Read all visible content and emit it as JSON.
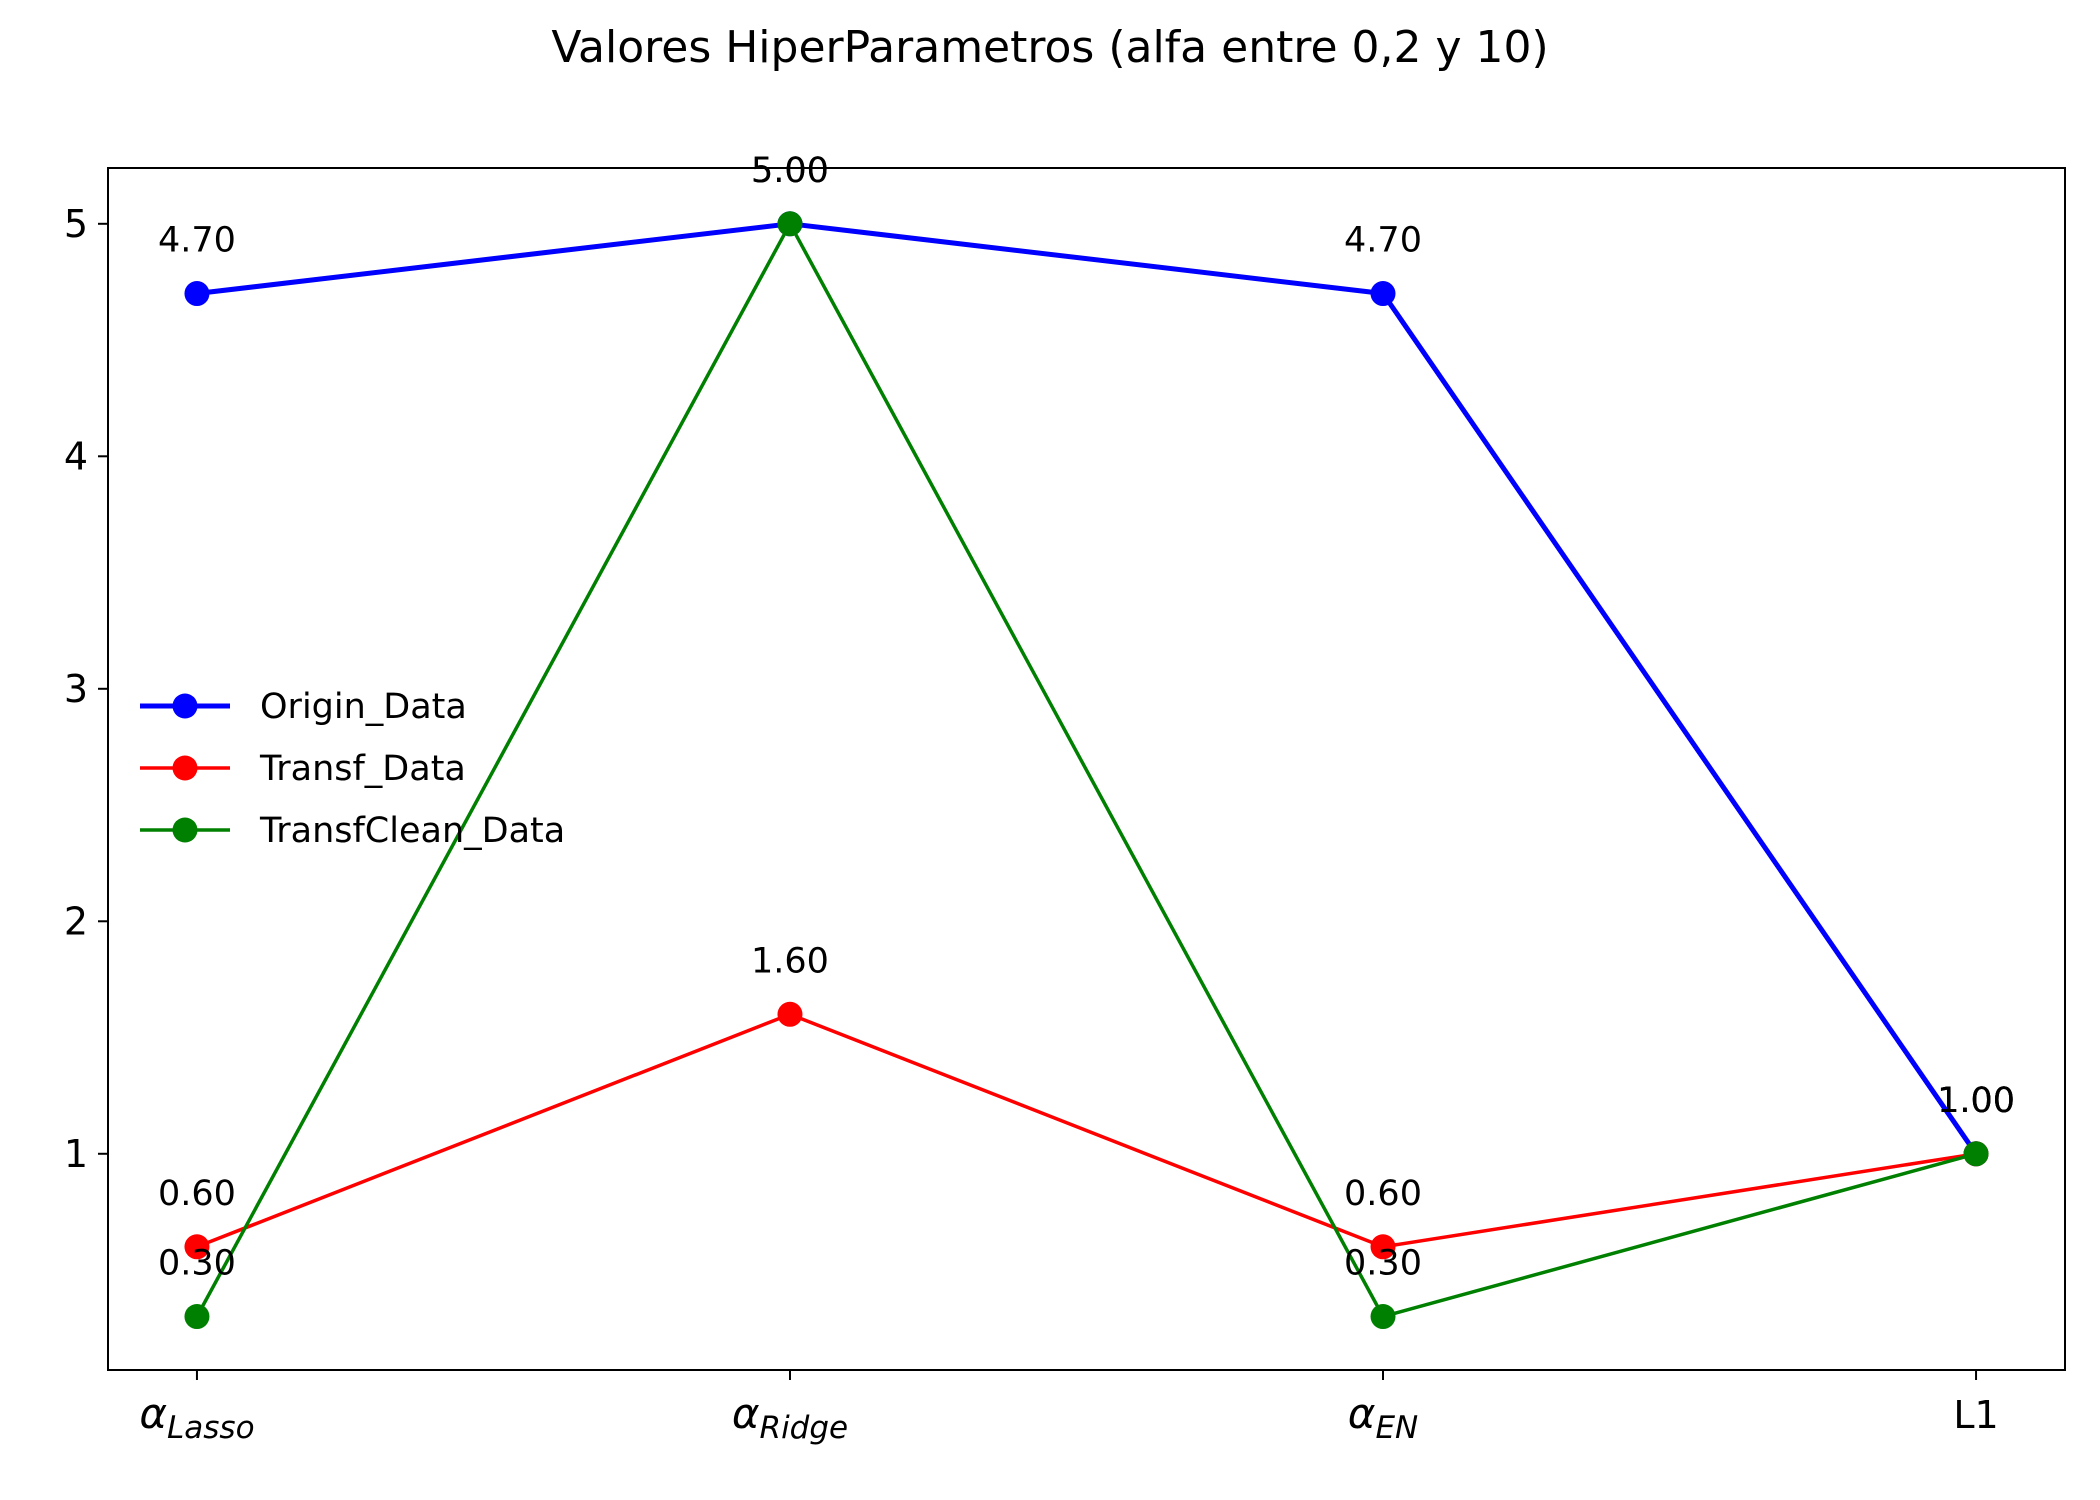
{
  "chart_data": {
    "type": "line",
    "title": "Valores HiperParametros (alfa entre 0,2 y 10)",
    "xlabel": "",
    "ylabel": "",
    "categories": [
      {
        "base": "α",
        "sub": "Lasso"
      },
      {
        "base": "α",
        "sub": "Ridge"
      },
      {
        "base": "α",
        "sub": "EN"
      },
      {
        "base": "L1",
        "sub": ""
      }
    ],
    "ylim": [
      0.07,
      5.24
    ],
    "yticks": [
      1,
      2,
      3,
      4,
      5
    ],
    "grid": false,
    "legend_position": "center-left",
    "series": [
      {
        "name": "Origin_Data",
        "color": "#0000ff",
        "values": [
          4.7,
          5.0,
          4.7,
          1.0
        ],
        "labels": [
          "4.70",
          "5.00",
          "4.70",
          "1.00"
        ],
        "thick": true
      },
      {
        "name": "Transf_Data",
        "color": "#ff0000",
        "values": [
          0.6,
          1.6,
          0.6,
          1.0
        ],
        "labels": [
          "0.60",
          "1.60",
          "0.60",
          "1.00"
        ],
        "thick": false
      },
      {
        "name": "TransfClean_Data",
        "color": "#008000",
        "values": [
          0.3,
          5.0,
          0.3,
          1.0
        ],
        "labels": [
          "0.30",
          "5.00",
          "0.30",
          "1.00"
        ],
        "thick": false
      }
    ]
  }
}
